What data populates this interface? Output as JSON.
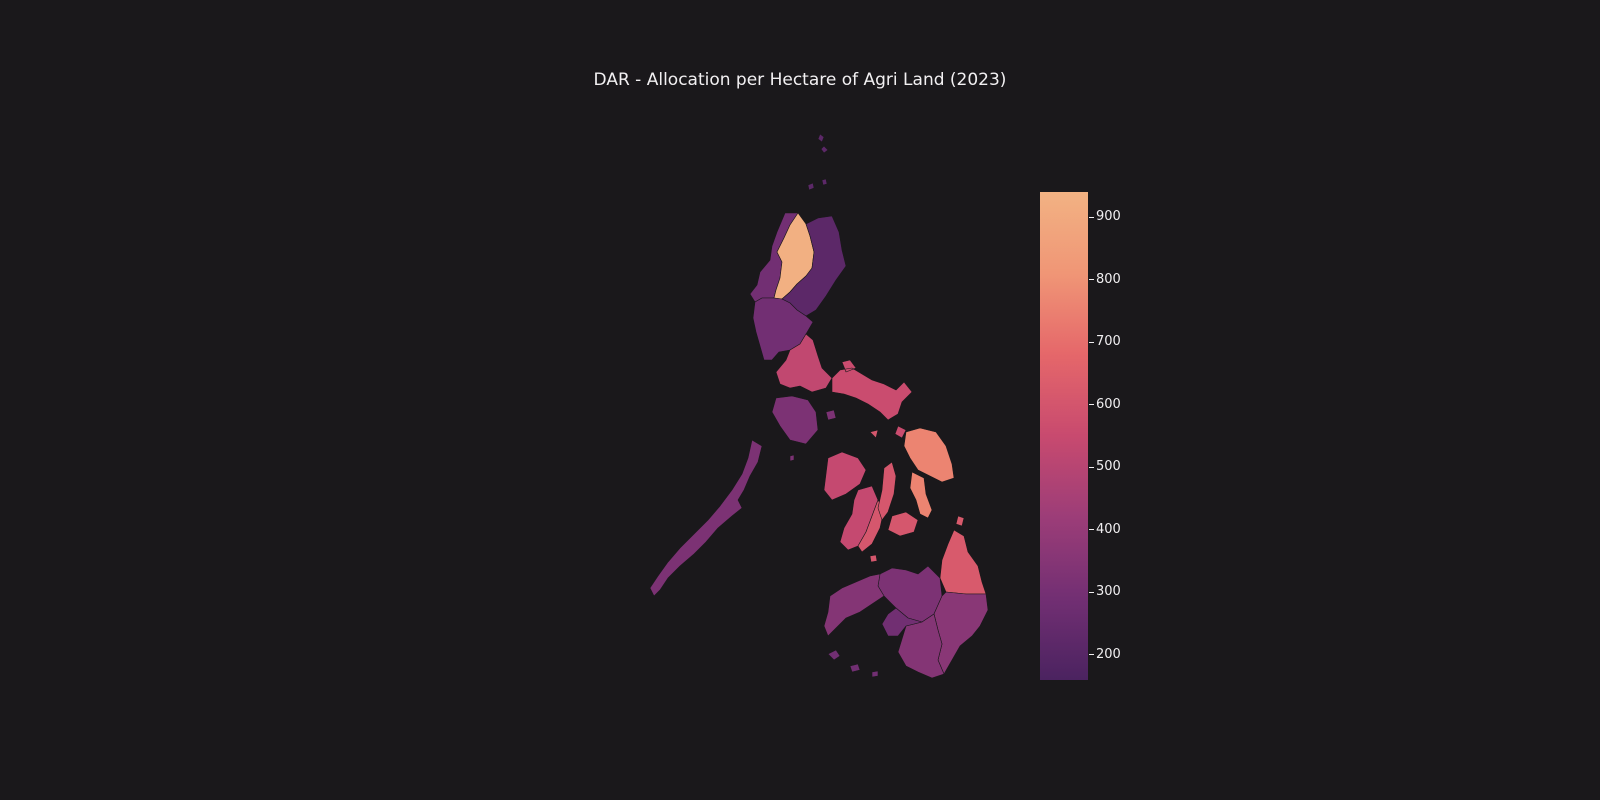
{
  "title": "DAR - Allocation per Hectare of Agri Land (2023)",
  "colorbar": {
    "min": 160,
    "max": 940,
    "ticks": [
      200,
      300,
      400,
      500,
      600,
      700,
      800,
      900
    ],
    "colors": [
      "#4b2360",
      "#722f73",
      "#9c3d78",
      "#c84a6f",
      "#e5676a",
      "#f09676",
      "#f2b283"
    ]
  },
  "regions": [
    {
      "name": "CAR",
      "value": 930
    },
    {
      "name": "Ilocos",
      "value": 290
    },
    {
      "name": "Cagayan Valley",
      "value": 215
    },
    {
      "name": "Central Luzon",
      "value": 290
    },
    {
      "name": "CALABARZON",
      "value": 530
    },
    {
      "name": "MIMAROPA",
      "value": 320
    },
    {
      "name": "Bicol",
      "value": 560
    },
    {
      "name": "Western Visayas",
      "value": 540
    },
    {
      "name": "Central Visayas",
      "value": 610
    },
    {
      "name": "Eastern Visayas",
      "value": 760
    },
    {
      "name": "Zamboanga Peninsula",
      "value": 345
    },
    {
      "name": "Northern Mindanao",
      "value": 320
    },
    {
      "name": "Davao",
      "value": 360
    },
    {
      "name": "SOCCSKSARGEN",
      "value": 345
    },
    {
      "name": "Caraga",
      "value": 620
    },
    {
      "name": "BARMM",
      "value": 285
    }
  ]
}
